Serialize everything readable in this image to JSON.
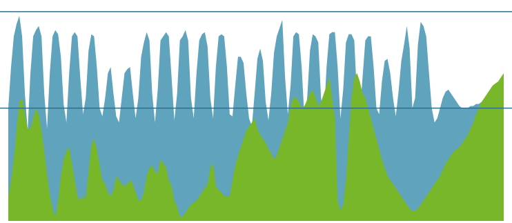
{
  "colors": {
    "background": "#ffffff",
    "series_a": "#5fa3bd",
    "series_b": "#78b72a",
    "reference_line": "#2f6f8e"
  },
  "chart_data": {
    "type": "area",
    "x": [
      0,
      1,
      2,
      3,
      4,
      5,
      6,
      7,
      8,
      9,
      10,
      11,
      12,
      13,
      14,
      15,
      16,
      17,
      18,
      19,
      20,
      21,
      22,
      23,
      24,
      25,
      26,
      27,
      28,
      29,
      30,
      31,
      32,
      33,
      34,
      35,
      36,
      37,
      38,
      39,
      40,
      41,
      42,
      43,
      44,
      45,
      46,
      47,
      48,
      49,
      50,
      51,
      52,
      53,
      54,
      55,
      56,
      57,
      58,
      59,
      60,
      61,
      62,
      63,
      64,
      65,
      66,
      67,
      68,
      69,
      70,
      71,
      72,
      73,
      74,
      75,
      76,
      77,
      78,
      79,
      80,
      81,
      82,
      83,
      84,
      85,
      86,
      87,
      88,
      89,
      90,
      91,
      92,
      93,
      94,
      95,
      96,
      97,
      98,
      99,
      100,
      101,
      102,
      103,
      104,
      105,
      106,
      107,
      108,
      109,
      110,
      111,
      112,
      113,
      114,
      115,
      116,
      117,
      118,
      119,
      120,
      121,
      122,
      123,
      124,
      125,
      126,
      127,
      128,
      129,
      130,
      131,
      132,
      133,
      134,
      135,
      136,
      137,
      138,
      139,
      140,
      141,
      142,
      143,
      144,
      145,
      146,
      147,
      148,
      149,
      150,
      151,
      152,
      153,
      154,
      155,
      156,
      157,
      158,
      159,
      160,
      161,
      162,
      163,
      164,
      165,
      166,
      167,
      168,
      169,
      170,
      171,
      172,
      173,
      174,
      175,
      176,
      177,
      178,
      179
    ],
    "series": [
      {
        "values": [
          0.55,
          0.75,
          0.9,
          0.96,
          1.0,
          0.9,
          0.62,
          0.44,
          0.72,
          0.9,
          0.93,
          0.95,
          0.9,
          0.62,
          0.45,
          0.72,
          0.9,
          0.93,
          0.91,
          0.8,
          0.57,
          0.48,
          0.72,
          0.9,
          0.92,
          0.9,
          0.7,
          0.52,
          0.6,
          0.83,
          0.91,
          0.9,
          0.75,
          0.55,
          0.51,
          0.6,
          0.72,
          0.75,
          0.62,
          0.51,
          0.48,
          0.6,
          0.72,
          0.74,
          0.75,
          0.62,
          0.5,
          0.6,
          0.8,
          0.87,
          0.92,
          0.88,
          0.62,
          0.48,
          0.64,
          0.88,
          0.9,
          0.92,
          0.9,
          0.7,
          0.49,
          0.62,
          0.88,
          0.9,
          0.93,
          0.88,
          0.6,
          0.5,
          0.72,
          0.88,
          0.91,
          0.92,
          0.85,
          0.6,
          0.5,
          0.75,
          0.9,
          0.91,
          0.9,
          0.75,
          0.52,
          0.51,
          0.66,
          0.8,
          0.8,
          0.77,
          0.62,
          0.5,
          0.46,
          0.62,
          0.79,
          0.84,
          0.78,
          0.58,
          0.49,
          0.62,
          0.82,
          0.9,
          0.94,
          0.98,
          0.7,
          0.52,
          0.66,
          0.9,
          0.92,
          0.91,
          0.75,
          0.5,
          0.6,
          0.83,
          0.91,
          0.9,
          0.87,
          0.6,
          0.5,
          0.75,
          0.91,
          0.92,
          0.92,
          0.75,
          0.5,
          0.64,
          0.87,
          0.91,
          0.91,
          0.88,
          0.6,
          0.52,
          0.7,
          0.88,
          0.9,
          0.9,
          0.75,
          0.55,
          0.52,
          0.68,
          0.78,
          0.79,
          0.72,
          0.6,
          0.51,
          0.63,
          0.78,
          0.86,
          0.95,
          0.84,
          0.55,
          0.6,
          0.86,
          0.97,
          0.95,
          0.9,
          0.72,
          0.55,
          0.48,
          0.5,
          0.55,
          0.6,
          0.63,
          0.64,
          0.62,
          0.6,
          0.58,
          0.56,
          0.55,
          0.55,
          0.55,
          0.56,
          0.56,
          0.57,
          0.57,
          0.58,
          0.58,
          0.59,
          0.59,
          0.6,
          0.61,
          0.61,
          0.62,
          0.62
        ]
      },
      {
        "values": [
          0.12,
          0.2,
          0.3,
          0.45,
          0.58,
          0.6,
          0.52,
          0.45,
          0.45,
          0.5,
          0.55,
          0.52,
          0.44,
          0.34,
          0.23,
          0.13,
          0.06,
          0.02,
          0.1,
          0.22,
          0.3,
          0.34,
          0.36,
          0.28,
          0.2,
          0.12,
          0.1,
          0.12,
          0.11,
          0.24,
          0.37,
          0.4,
          0.35,
          0.27,
          0.2,
          0.18,
          0.14,
          0.12,
          0.15,
          0.22,
          0.2,
          0.18,
          0.17,
          0.18,
          0.2,
          0.18,
          0.14,
          0.1,
          0.1,
          0.14,
          0.22,
          0.26,
          0.27,
          0.24,
          0.23,
          0.3,
          0.28,
          0.26,
          0.2,
          0.17,
          0.1,
          0.07,
          0.02,
          0.02,
          0.04,
          0.06,
          0.08,
          0.09,
          0.1,
          0.12,
          0.14,
          0.16,
          0.18,
          0.26,
          0.28,
          0.17,
          0.15,
          0.14,
          0.12,
          0.12,
          0.12,
          0.2,
          0.27,
          0.32,
          0.36,
          0.4,
          0.44,
          0.46,
          0.48,
          0.5,
          0.45,
          0.42,
          0.4,
          0.38,
          0.35,
          0.33,
          0.3,
          0.32,
          0.36,
          0.4,
          0.44,
          0.48,
          0.56,
          0.6,
          0.6,
          0.58,
          0.55,
          0.56,
          0.59,
          0.62,
          0.64,
          0.6,
          0.56,
          0.58,
          0.62,
          0.66,
          0.7,
          0.6,
          0.5,
          0.1,
          0.05,
          0.08,
          0.2,
          0.4,
          0.6,
          0.7,
          0.72,
          0.68,
          0.62,
          0.6,
          0.55,
          0.5,
          0.45,
          0.4,
          0.35,
          0.3,
          0.26,
          0.22,
          0.2,
          0.18,
          0.16,
          0.14,
          0.12,
          0.1,
          0.08,
          0.06,
          0.05,
          0.05,
          0.06,
          0.08,
          0.1,
          0.12,
          0.14,
          0.16,
          0.18,
          0.2,
          0.22,
          0.25,
          0.28,
          0.3,
          0.32,
          0.34,
          0.35,
          0.36,
          0.38,
          0.4,
          0.42,
          0.45,
          0.48,
          0.52,
          0.55,
          0.58,
          0.6,
          0.62,
          0.64,
          0.66,
          0.67,
          0.68,
          0.7,
          0.72
        ]
      }
    ],
    "reference_lines": [
      1.02,
      0.55
    ],
    "ylim": [
      0,
      1.05
    ],
    "grid": false,
    "legend": "none",
    "title": "",
    "xlabel": "",
    "ylabel": ""
  }
}
